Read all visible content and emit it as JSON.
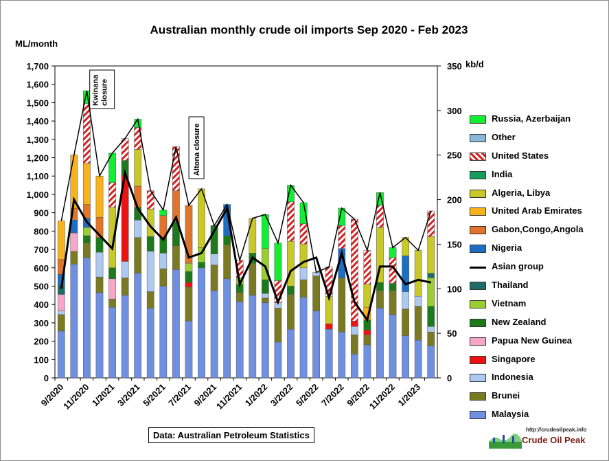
{
  "chart_data": {
    "type": "bar",
    "stacked": true,
    "title": "Australian monthly crude oil imports Sep 2020 - Feb 2023",
    "ylabel": "ML/month",
    "y2label": "kb/d",
    "ylim": [
      0,
      1700
    ],
    "y2lim": [
      0,
      350
    ],
    "yticks": [
      0,
      100,
      200,
      300,
      400,
      500,
      600,
      700,
      800,
      900,
      1000,
      1100,
      1200,
      1300,
      1400,
      1500,
      1600,
      1700
    ],
    "ytick_labels": [
      "0",
      "100",
      "200",
      "300",
      "400",
      "500",
      "600",
      "700",
      "800",
      "900",
      "1,000",
      "1,100",
      "1,200",
      "1,300",
      "1,400",
      "1,500",
      "1,600",
      "1,700"
    ],
    "y2ticks": [
      0,
      50,
      100,
      150,
      200,
      250,
      300,
      350
    ],
    "grid": false,
    "legend_position": "right",
    "categories": [
      "9/2020",
      "10/2020",
      "11/2020",
      "12/2020",
      "1/2021",
      "2/2021",
      "3/2021",
      "4/2021",
      "5/2021",
      "6/2021",
      "7/2021",
      "8/2021",
      "9/2021",
      "10/2021",
      "11/2021",
      "12/2021",
      "1/2022",
      "2/2022",
      "3/2022",
      "4/2022",
      "5/2022",
      "6/2022",
      "7/2022",
      "8/2022",
      "9/2022",
      "10/2022",
      "11/2022",
      "12/2022",
      "1/2023",
      "2/2023"
    ],
    "x_tick_labels": [
      "9/2020",
      "11/2020",
      "1/2021",
      "3/2021",
      "5/2021",
      "7/2021",
      "9/2021",
      "11/2021",
      "1/2022",
      "3/2022",
      "5/2022",
      "7/2022",
      "9/2022",
      "11/2022",
      "1/2023"
    ],
    "series": [
      {
        "name": "Malaysia",
        "color": "#6f8fe0",
        "values": [
          255,
          620,
          655,
          465,
          385,
          450,
          570,
          380,
          500,
          590,
          310,
          600,
          475,
          540,
          415,
          450,
          410,
          195,
          265,
          440,
          365,
          265,
          250,
          130,
          180,
          380,
          345,
          230,
          205,
          175
        ]
      },
      {
        "name": "Brunei",
        "color": "#7a7a22",
        "values": [
          90,
          70,
          80,
          85,
          45,
          95,
          195,
          90,
          95,
          130,
          185,
          0,
          140,
          185,
          50,
          175,
          25,
          185,
          190,
          95,
          190,
          0,
          295,
          105,
          55,
          95,
          130,
          145,
          185,
          75
        ]
      },
      {
        "name": "Indonesia",
        "color": "#aec9ef",
        "values": [
          20,
          0,
          0,
          135,
          0,
          90,
          95,
          220,
          85,
          0,
          0,
          0,
          60,
          0,
          0,
          0,
          25,
          30,
          0,
          65,
          20,
          0,
          0,
          45,
          0,
          0,
          0,
          95,
          55,
          30
        ]
      },
      {
        "name": "Singapore",
        "color": "#ee1111",
        "values": [
          0,
          0,
          0,
          0,
          0,
          470,
          0,
          0,
          0,
          0,
          25,
          0,
          0,
          0,
          0,
          0,
          0,
          0,
          0,
          0,
          0,
          30,
          0,
          30,
          25,
          0,
          0,
          0,
          0,
          0
        ]
      },
      {
        "name": "Papua New Guinea",
        "color": "#f7a6c8",
        "values": [
          90,
          100,
          0,
          0,
          110,
          0,
          0,
          0,
          0,
          0,
          0,
          0,
          0,
          0,
          0,
          0,
          0,
          0,
          0,
          0,
          0,
          0,
          0,
          0,
          0,
          0,
          0,
          0,
          0,
          0
        ]
      },
      {
        "name": "New Zealand",
        "color": "#1c7a1c",
        "values": [
          0,
          0,
          40,
          80,
          60,
          80,
          70,
          80,
          85,
          130,
          60,
          30,
          155,
          50,
          45,
          55,
          75,
          0,
          45,
          0,
          0,
          0,
          0,
          0,
          55,
          45,
          40,
          0,
          0,
          110
        ]
      },
      {
        "name": "Vietnam",
        "color": "#9acd32",
        "values": [
          0,
          0,
          45,
          0,
          0,
          0,
          0,
          0,
          0,
          0,
          45,
          80,
          0,
          0,
          35,
          0,
          170,
          0,
          0,
          0,
          0,
          0,
          0,
          0,
          0,
          0,
          0,
          0,
          0,
          155
        ]
      },
      {
        "name": "Thailand",
        "color": "#1f6b66",
        "values": [
          50,
          0,
          0,
          0,
          0,
          0,
          0,
          0,
          0,
          0,
          0,
          0,
          0,
          0,
          0,
          0,
          0,
          0,
          0,
          0,
          0,
          0,
          0,
          0,
          0,
          0,
          0,
          0,
          0,
          25
        ]
      },
      {
        "name": "Nigeria",
        "color": "#1d6ec2",
        "values": [
          60,
          70,
          50,
          0,
          0,
          0,
          0,
          0,
          0,
          0,
          0,
          0,
          0,
          170,
          0,
          0,
          0,
          0,
          0,
          0,
          0,
          0,
          160,
          0,
          0,
          0,
          0,
          195,
          0,
          0
        ]
      },
      {
        "name": "Gabon,Congo,Angola",
        "color": "#e0742a",
        "values": [
          80,
          65,
          75,
          110,
          0,
          0,
          115,
          0,
          120,
          170,
          315,
          0,
          0,
          0,
          0,
          0,
          0,
          0,
          0,
          0,
          0,
          0,
          0,
          0,
          0,
          0,
          0,
          0,
          0,
          0
        ]
      },
      {
        "name": "United Arab Emirates",
        "color": "#f7b21e",
        "values": [
          210,
          290,
          225,
          225,
          0,
          0,
          0,
          0,
          0,
          0,
          0,
          0,
          0,
          0,
          0,
          0,
          0,
          0,
          0,
          0,
          0,
          0,
          0,
          0,
          70,
          0,
          0,
          0,
          0,
          0
        ]
      },
      {
        "name": "Algeria, Libya",
        "color": "#c8c828",
        "values": [
          0,
          0,
          0,
          0,
          330,
          0,
          200,
          150,
          0,
          0,
          0,
          320,
          0,
          0,
          0,
          190,
          0,
          0,
          245,
          130,
          0,
          150,
          0,
          0,
          125,
          300,
          0,
          100,
          250,
          200
        ]
      },
      {
        "name": "India",
        "color": "#169c5c",
        "values": [
          0,
          0,
          0,
          0,
          0,
          0,
          0,
          0,
          0,
          0,
          0,
          0,
          0,
          0,
          0,
          0,
          0,
          0,
          0,
          0,
          0,
          0,
          0,
          0,
          0,
          0,
          0,
          0,
          0,
          0
        ]
      },
      {
        "name": "United States",
        "color": "#ffffff",
        "values": [
          0,
          0,
          325,
          0,
          135,
          120,
          120,
          100,
          0,
          240,
          0,
          0,
          0,
          0,
          95,
          0,
          0,
          120,
          215,
          110,
          0,
          160,
          125,
          555,
          185,
          120,
          140,
          0,
          0,
          140
        ]
      },
      {
        "name": "Other",
        "color": "#8cb8d8",
        "values": [
          0,
          0,
          0,
          0,
          0,
          0,
          0,
          0,
          0,
          0,
          0,
          0,
          0,
          0,
          0,
          0,
          0,
          0,
          0,
          0,
          0,
          0,
          0,
          0,
          0,
          0,
          0,
          0,
          0,
          0
        ]
      },
      {
        "name": "Russia, Azerbaijan",
        "color": "#11ee33",
        "values": [
          0,
          0,
          70,
          0,
          160,
          0,
          45,
          0,
          30,
          0,
          0,
          0,
          0,
          0,
          0,
          0,
          185,
          205,
          90,
          115,
          0,
          0,
          95,
          0,
          0,
          70,
          55,
          0,
          0,
          0
        ]
      }
    ],
    "line": {
      "name": "Asian group",
      "axis": "right",
      "values": [
        100,
        200,
        175,
        160,
        145,
        230,
        190,
        170,
        155,
        180,
        135,
        140,
        165,
        190,
        105,
        135,
        125,
        85,
        120,
        130,
        135,
        90,
        140,
        85,
        65,
        125,
        125,
        105,
        110,
        107
      ]
    },
    "annotations": [
      "Kwinana closure",
      "Altona closure"
    ]
  },
  "source_note": "Data: Australian Petroleum Statistics",
  "logo": {
    "url": "http://crudeoilpeak.info",
    "name": "Crude Oil Peak"
  }
}
